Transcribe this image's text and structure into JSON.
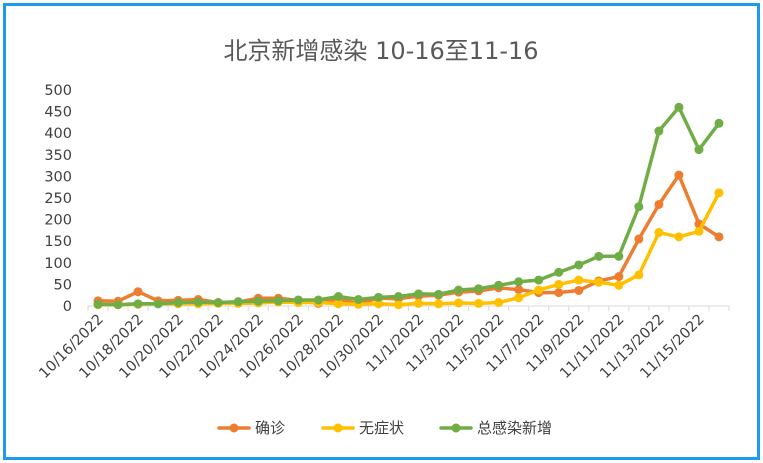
{
  "chart_data": {
    "type": "line",
    "title": "北京新增感染 10-16至11-16",
    "xlabel": "",
    "ylabel": "",
    "ylim": [
      0,
      500
    ],
    "yticks": [
      0,
      50,
      100,
      150,
      200,
      250,
      300,
      350,
      400,
      450,
      500
    ],
    "x": [
      "10/16/2022",
      "10/17/2022",
      "10/18/2022",
      "10/19/2022",
      "10/20/2022",
      "10/21/2022",
      "10/22/2022",
      "10/23/2022",
      "10/24/2022",
      "10/25/2022",
      "10/26/2022",
      "10/27/2022",
      "10/28/2022",
      "10/29/2022",
      "10/30/2022",
      "10/31/2022",
      "11/1/2022",
      "11/2/2022",
      "11/3/2022",
      "11/4/2022",
      "11/5/2022",
      "11/6/2022",
      "11/7/2022",
      "11/8/2022",
      "11/9/2022",
      "11/10/2022",
      "11/11/2022",
      "11/12/2022",
      "11/13/2022",
      "11/14/2022",
      "11/15/2022",
      "11/16/2022"
    ],
    "x_tick_labels": [
      "10/16/2022",
      "10/18/2022",
      "10/20/2022",
      "10/22/2022",
      "10/24/2022",
      "10/26/2022",
      "10/28/2022",
      "10/30/2022",
      "11/1/2022",
      "11/3/2022",
      "11/5/2022",
      "11/7/2022",
      "11/9/2022",
      "11/11/2022",
      "11/13/2022",
      "11/15/2022"
    ],
    "grid": false,
    "legend_position": "bottom",
    "series": [
      {
        "name": "确诊",
        "color": "#ed7d31",
        "values": [
          12,
          11,
          33,
          12,
          13,
          15,
          8,
          9,
          18,
          18,
          13,
          6,
          16,
          5,
          18,
          17,
          23,
          25,
          32,
          35,
          42,
          38,
          31,
          31,
          36,
          58,
          68,
          155,
          235,
          303,
          190,
          160
        ]
      },
      {
        "name": "无症状",
        "color": "#ffc000",
        "values": [
          3,
          3,
          4,
          5,
          5,
          5,
          6,
          6,
          7,
          9,
          8,
          8,
          5,
          4,
          5,
          3,
          6,
          5,
          7,
          6,
          8,
          19,
          37,
          50,
          60,
          55,
          48,
          72,
          170,
          160,
          173,
          262
        ]
      },
      {
        "name": "总感染新增",
        "color": "#70ad47",
        "values": [
          4,
          3,
          5,
          5,
          8,
          9,
          8,
          10,
          11,
          12,
          14,
          14,
          22,
          15,
          20,
          22,
          28,
          27,
          37,
          40,
          48,
          56,
          60,
          78,
          95,
          115,
          115,
          230,
          405,
          460,
          362,
          423
        ]
      }
    ]
  }
}
